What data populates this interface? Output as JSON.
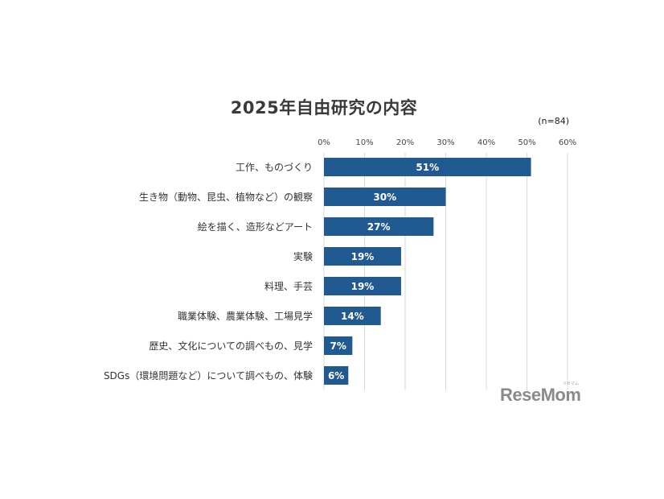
{
  "chart_data": {
    "type": "bar",
    "orientation": "horizontal",
    "title": "2025年自由研究の内容",
    "sample_note": "(n=84)",
    "categories": [
      "工作、ものづくり",
      "生き物（動物、昆虫、植物など）の観察",
      "絵を描く、造形などアート",
      "実験",
      "料理、手芸",
      "職業体験、農業体験、工場見学",
      "歴史、文化についての調べもの、見学",
      "SDGs（環境問題など）について調べもの、体験"
    ],
    "values": [
      51,
      30,
      27,
      19,
      19,
      14,
      7,
      6
    ],
    "data_labels": [
      "51%",
      "30%",
      "27%",
      "19%",
      "19%",
      "14%",
      "7%",
      "6%"
    ],
    "xlim": [
      0,
      60
    ],
    "xticks": [
      "0%",
      "10%",
      "20%",
      "30%",
      "40%",
      "50%",
      "60%"
    ],
    "grid": true,
    "bar_color": "#215a91",
    "grid_color": "#d9d9d9"
  },
  "watermark": {
    "logo_text": "ReseMom",
    "logo_sub": "リセマム"
  }
}
